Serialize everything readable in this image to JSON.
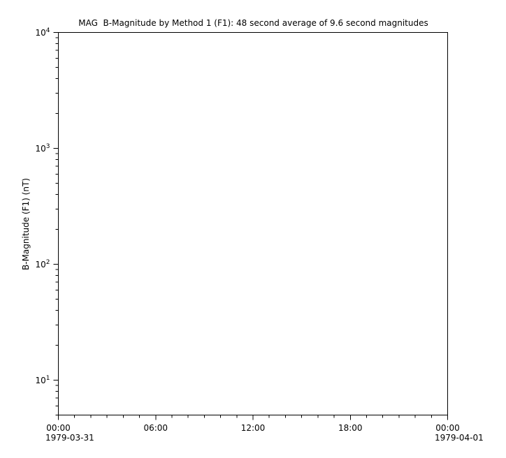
{
  "colors": {
    "foreground": "#000000",
    "background": "#ffffff"
  },
  "chart_data": {
    "type": "line",
    "title": "MAG  B-Magnitude by Method 1 (F1): 48 second average of 9.6 second magnitudes",
    "xlabel": "",
    "ylabel": "B-Magnitude (F1) (nT)",
    "grid": false,
    "frame": true,
    "y_axis": {
      "scale": "log",
      "ylim": [
        5,
        10000
      ],
      "major_ticks": [
        {
          "value": 10,
          "base": "10",
          "exponent": "1"
        },
        {
          "value": 100,
          "base": "10",
          "exponent": "2"
        },
        {
          "value": 1000,
          "base": "10",
          "exponent": "3"
        },
        {
          "value": 10000,
          "base": "10",
          "exponent": "4"
        }
      ],
      "minor_tick_mantissas": [
        2,
        3,
        4,
        5,
        6,
        7,
        8,
        9
      ]
    },
    "x_axis": {
      "unit": "hours",
      "range_hours": [
        0,
        24
      ],
      "major_ticks": [
        {
          "hour": 0,
          "label": "00:00",
          "date": "1979-03-31"
        },
        {
          "hour": 6,
          "label": "06:00"
        },
        {
          "hour": 12,
          "label": "12:00"
        },
        {
          "hour": 18,
          "label": "18:00"
        },
        {
          "hour": 24,
          "label": "00:00",
          "date": "1979-04-01"
        }
      ],
      "minor_tick_interval_hours": 1
    },
    "series": []
  }
}
